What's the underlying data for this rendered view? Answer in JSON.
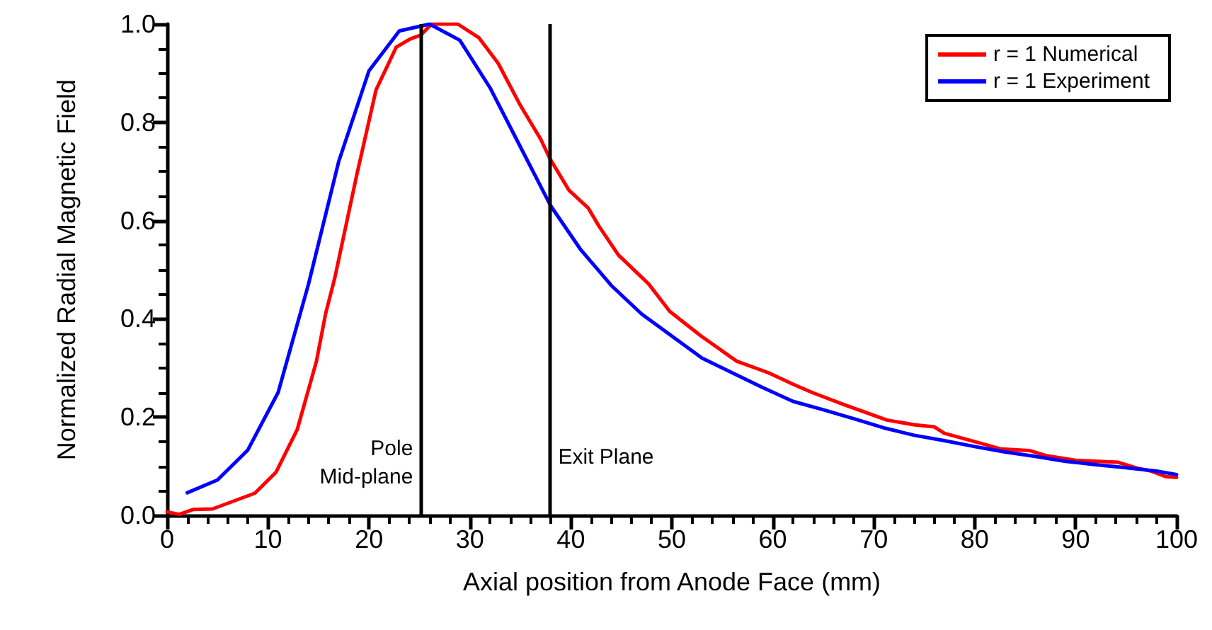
{
  "chart_data": {
    "type": "line",
    "xlabel": "Axial position from Anode Face (mm)",
    "ylabel": "Normalized Radial Magnetic Field",
    "xlim": [
      0,
      100
    ],
    "xticks": [
      0,
      10,
      20,
      30,
      40,
      50,
      60,
      70,
      80,
      90,
      100
    ],
    "ylim": [
      0,
      1
    ],
    "yticks": [
      {
        "value": 0,
        "label": "0.0"
      },
      {
        "value": 0.2,
        "label": "0.2"
      },
      {
        "value": 0.4,
        "label": "0.4"
      },
      {
        "value": 0.6,
        "label": "0.6"
      },
      {
        "value": 0.8,
        "label": "0.8"
      },
      {
        "value": 1,
        "label": "1.0"
      }
    ],
    "grid": false,
    "legend": "top right",
    "marker": "none",
    "line_style": "solid",
    "series": [
      {
        "name": "r = 1 Numerical",
        "color": "#ff0000",
        "x": [
          0,
          1.2,
          2.6,
          4.5,
          8.7,
          10.8,
          12.9,
          14.8,
          15.7,
          16.6,
          18.8,
          20.7,
          22.7,
          24.1,
          25.1,
          26.2,
          28.8,
          30.9,
          32.8,
          34.9,
          37,
          37.9,
          39.8,
          41.7,
          42.8,
          44.7,
          47.7,
          49.8,
          52.9,
          56.4,
          59.6,
          62,
          63.9,
          67.1,
          71.3,
          74.1,
          76,
          77,
          80.7,
          82.6,
          85.4,
          87.2,
          90,
          94.2,
          96.1,
          97.5,
          98.9,
          100
        ],
        "values": [
          0.007,
          0.002,
          0.012,
          0.013,
          0.045,
          0.088,
          0.175,
          0.314,
          0.41,
          0.482,
          0.694,
          0.866,
          0.953,
          0.97,
          0.977,
          1.0,
          1.0,
          0.972,
          0.92,
          0.838,
          0.766,
          0.727,
          0.662,
          0.626,
          0.588,
          0.53,
          0.471,
          0.415,
          0.365,
          0.314,
          0.29,
          0.267,
          0.25,
          0.225,
          0.194,
          0.184,
          0.18,
          0.167,
          0.146,
          0.135,
          0.132,
          0.121,
          0.112,
          0.108,
          0.096,
          0.09,
          0.079,
          0.077
        ]
      },
      {
        "name": "r = 1 Experiment",
        "color": "#0000ff",
        "x": [
          2,
          5,
          8,
          11,
          14,
          17,
          20,
          23,
          26,
          29,
          32,
          35,
          38,
          41,
          44,
          47,
          50,
          53,
          56,
          59,
          62,
          65,
          68,
          71,
          74,
          77,
          80,
          83,
          86,
          89,
          92,
          95,
          98,
          100
        ],
        "values": [
          0.046,
          0.072,
          0.133,
          0.25,
          0.47,
          0.72,
          0.905,
          0.986,
          1.0,
          0.967,
          0.87,
          0.75,
          0.63,
          0.54,
          0.468,
          0.41,
          0.365,
          0.32,
          0.29,
          0.26,
          0.232,
          0.215,
          0.197,
          0.178,
          0.163,
          0.152,
          0.14,
          0.129,
          0.12,
          0.11,
          0.103,
          0.097,
          0.09,
          0.083
        ]
      }
    ],
    "ref_lines": [
      {
        "axis": "x",
        "value": 25.2,
        "label": "Pole\nMid-plane",
        "color": "#000000"
      },
      {
        "axis": "x",
        "value": 37.9,
        "label": "Exit Plane",
        "color": "#000000"
      }
    ]
  }
}
